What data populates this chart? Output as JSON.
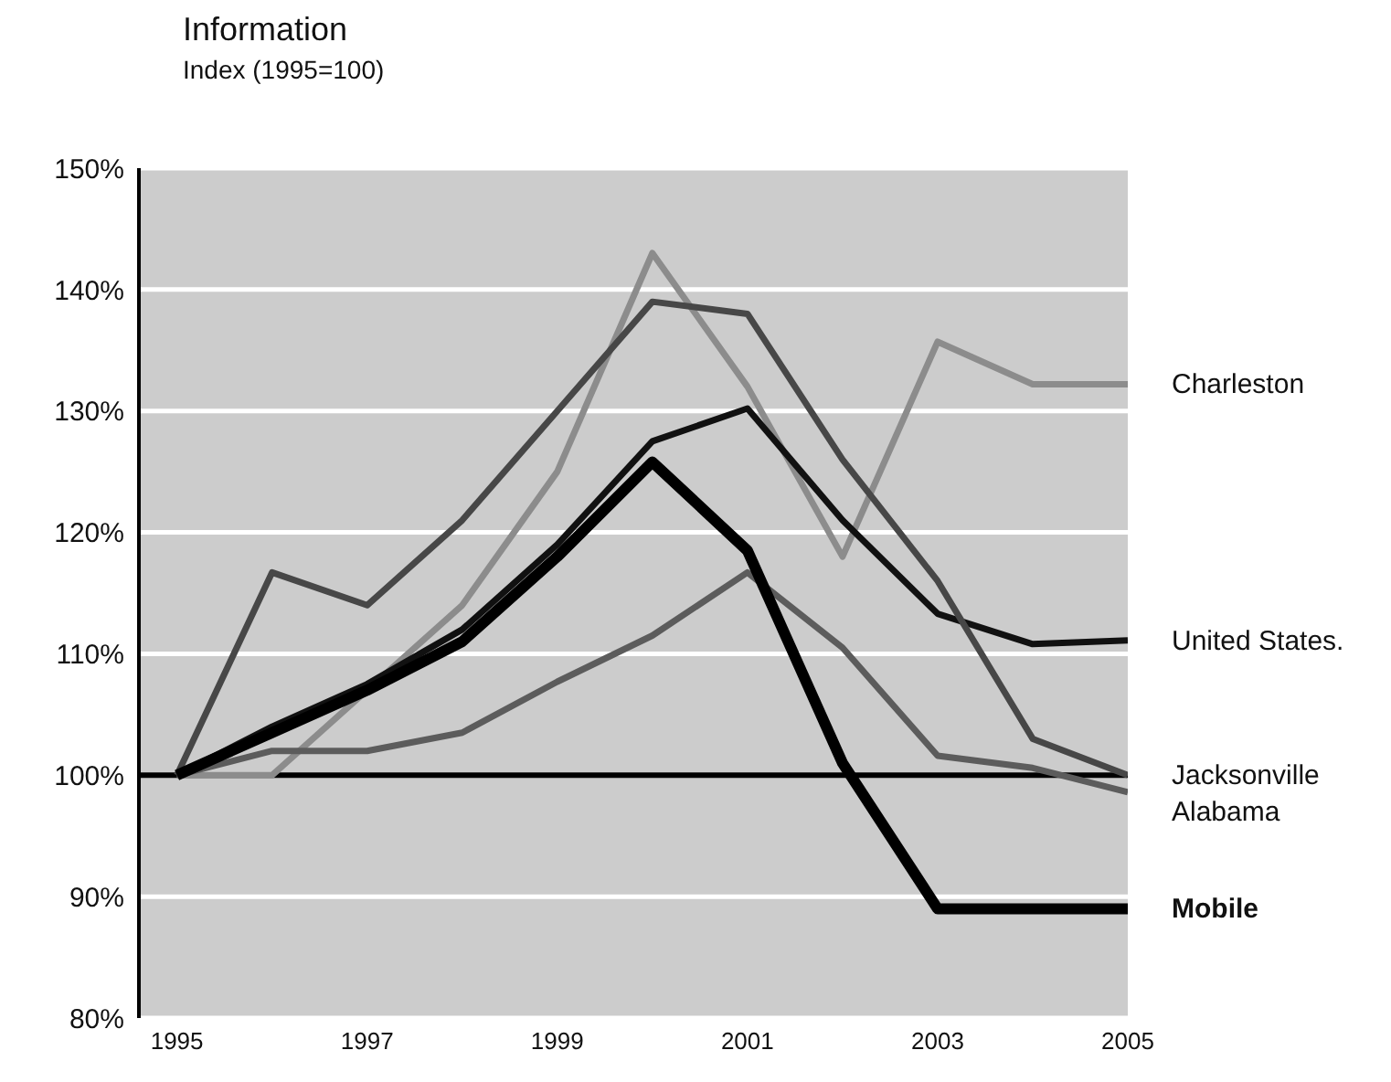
{
  "chart_data": {
    "type": "line",
    "title": "Information",
    "subtitle": "Index (1995=100)",
    "x": [
      1995,
      1996,
      1997,
      1998,
      1999,
      2000,
      2001,
      2002,
      2003,
      2004,
      2005
    ],
    "xlim": [
      1994.6,
      2005
    ],
    "xticks": [
      1995,
      1997,
      1999,
      2001,
      2003,
      2005
    ],
    "ylim": [
      80,
      150
    ],
    "yticks": [
      {
        "value": 80,
        "label": "80%"
      },
      {
        "value": 90,
        "label": "90%"
      },
      {
        "value": 100,
        "label": "100%"
      },
      {
        "value": 110,
        "label": "110%"
      },
      {
        "value": 120,
        "label": "120%"
      },
      {
        "value": 130,
        "label": "130%"
      },
      {
        "value": 140,
        "label": "140%"
      },
      {
        "value": 150,
        "label": "150%"
      }
    ],
    "grid": "y",
    "marker": "none",
    "line_style": "solid",
    "ref_lines": [
      {
        "axis": "y",
        "value": 100,
        "color": "#000000"
      }
    ],
    "series": [
      {
        "name": "Charleston",
        "color": "#8c8c8c",
        "values": [
          100,
          100,
          107,
          114,
          125,
          143,
          132,
          118,
          135.7,
          132.2,
          132.2
        ]
      },
      {
        "name": "United States.",
        "color": "#111111",
        "values": [
          100,
          104,
          107.5,
          112,
          119,
          127.5,
          130.2,
          121,
          113.3,
          110.8,
          111.1
        ]
      },
      {
        "name": "Jacksonville",
        "color": "#474747",
        "values": [
          100,
          116.7,
          114,
          121,
          130,
          139,
          138,
          126,
          116,
          103,
          100
        ]
      },
      {
        "name": "Alabama",
        "color": "#5c5c5c",
        "values": [
          100,
          102,
          102,
          103.5,
          107.7,
          111.5,
          116.7,
          110.5,
          101.6,
          100.6,
          98.6
        ]
      },
      {
        "name": "Mobile",
        "color": "#000000",
        "values": [
          100,
          103.5,
          107,
          111,
          118,
          125.8,
          118.5,
          101,
          89,
          89,
          89
        ]
      }
    ]
  }
}
